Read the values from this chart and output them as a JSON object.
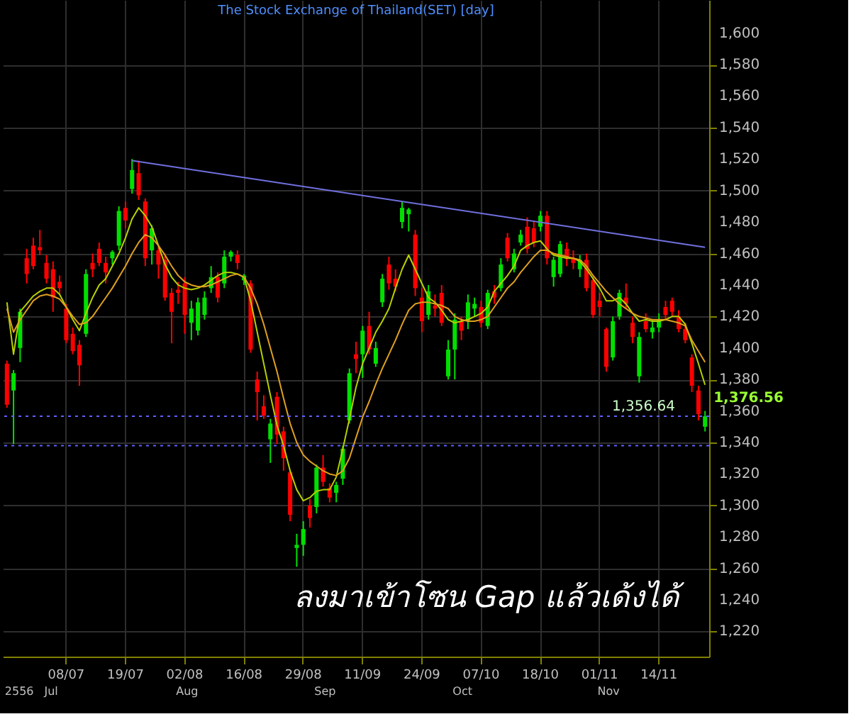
{
  "chart_data": {
    "type": "candlestick",
    "title": "The Stock Exchange of Thailand(SET) [day]",
    "categories": [
      null,
      null,
      null,
      null,
      null,
      null,
      null,
      null,
      null,
      "08/07",
      null,
      null,
      null,
      null,
      null,
      null,
      null,
      null,
      "19/07",
      null,
      null,
      null,
      null,
      null,
      null,
      null,
      null,
      "02/08",
      null,
      null,
      null,
      null,
      null,
      null,
      null,
      null,
      "16/08",
      null,
      null,
      null,
      null,
      null,
      null,
      null,
      null,
      "29/08",
      null,
      null,
      null,
      null,
      null,
      null,
      null,
      null,
      "11/09",
      null,
      null,
      null,
      null,
      null,
      null,
      null,
      null,
      "24/09",
      null,
      null,
      null,
      null,
      null,
      null,
      null,
      null,
      "07/10",
      null,
      null,
      null,
      null,
      null,
      null,
      null,
      null,
      "18/10",
      null,
      null,
      null,
      null,
      null,
      null,
      null,
      null,
      "01/11",
      null,
      null,
      null,
      null,
      null,
      null,
      null,
      null,
      "14/11",
      null,
      null,
      null,
      null,
      null,
      null,
      null
    ],
    "ohlc": [
      [
        1390,
        1392,
        1362,
        1364
      ],
      [
        1373,
        1386,
        1339,
        1384
      ],
      [
        1400,
        1425,
        1391,
        1423
      ],
      [
        1457,
        1463,
        1441,
        1447
      ],
      [
        1465,
        1470,
        1450,
        1452
      ],
      [
        1464,
        1475,
        1459,
        1462
      ],
      [
        1454,
        1459,
        1441,
        1444
      ],
      [
        1450,
        1455,
        1423,
        1432
      ],
      [
        1442,
        1446,
        1434,
        1438
      ],
      [
        1425,
        1428,
        1403,
        1405
      ],
      [
        1409,
        1413,
        1396,
        1398
      ],
      [
        1402,
        1405,
        1376,
        1389
      ],
      [
        1409,
        1450,
        1407,
        1447
      ],
      [
        1454,
        1460,
        1445,
        1450
      ],
      [
        1463,
        1467,
        1452,
        1454
      ],
      [
        1454,
        1458,
        1441,
        1448
      ],
      [
        1457,
        1462,
        1453,
        1461
      ],
      [
        1465,
        1490,
        1462,
        1487
      ],
      [
        1489,
        1493,
        1476,
        1481
      ],
      [
        1501,
        1520,
        1498,
        1513
      ],
      [
        1511,
        1519,
        1494,
        1497
      ],
      [
        1493,
        1495,
        1452,
        1457
      ],
      [
        1462,
        1478,
        1453,
        1476
      ],
      [
        1462,
        1465,
        1444,
        1453
      ],
      [
        1456,
        1460,
        1430,
        1432
      ],
      [
        1435,
        1438,
        1403,
        1423
      ],
      [
        1437,
        1442,
        1428,
        1435
      ],
      [
        1441,
        1445,
        1409,
        1421
      ],
      [
        1416,
        1430,
        1405,
        1425
      ],
      [
        1411,
        1432,
        1408,
        1429
      ],
      [
        1421,
        1436,
        1418,
        1432
      ],
      [
        1438,
        1452,
        1435,
        1445
      ],
      [
        1445,
        1448,
        1429,
        1432
      ],
      [
        1441,
        1462,
        1438,
        1458
      ],
      [
        1458,
        1462,
        1455,
        1461
      ],
      [
        1459,
        1462,
        1450,
        1454
      ],
      [
        1443,
        1447,
        1440,
        1446
      ],
      [
        1441,
        1443,
        1397,
        1399
      ],
      [
        1380,
        1385,
        1354,
        1372
      ],
      [
        1363,
        1370,
        1355,
        1357
      ],
      [
        1342,
        1355,
        1327,
        1352
      ],
      [
        1369,
        1372,
        1339,
        1345
      ],
      [
        1347,
        1350,
        1322,
        1330
      ],
      [
        1321,
        1323,
        1290,
        1294
      ],
      [
        1273,
        1282,
        1261,
        1275
      ],
      [
        1275,
        1290,
        1268,
        1285
      ],
      [
        1300,
        1304,
        1286,
        1292
      ],
      [
        1299,
        1326,
        1295,
        1324
      ],
      [
        1324,
        1332,
        1312,
        1315
      ],
      [
        1311,
        1314,
        1302,
        1305
      ],
      [
        1308,
        1315,
        1302,
        1313
      ],
      [
        1317,
        1338,
        1313,
        1336
      ],
      [
        1354,
        1387,
        1352,
        1384
      ],
      [
        1396,
        1404,
        1384,
        1393
      ],
      [
        1396,
        1414,
        1381,
        1411
      ],
      [
        1414,
        1423,
        1396,
        1399
      ],
      [
        1390,
        1404,
        1388,
        1400
      ],
      [
        1429,
        1447,
        1426,
        1444
      ],
      [
        1453,
        1458,
        1437,
        1441
      ],
      [
        1444,
        1450,
        1436,
        1439
      ],
      [
        1480,
        1493,
        1476,
        1489
      ],
      [
        1485,
        1489,
        1474,
        1488
      ],
      [
        1472,
        1475,
        1433,
        1438
      ],
      [
        1432,
        1438,
        1410,
        1417
      ],
      [
        1421,
        1440,
        1418,
        1436
      ],
      [
        1427,
        1434,
        1420,
        1425
      ],
      [
        1435,
        1440,
        1414,
        1416
      ],
      [
        1382,
        1405,
        1380,
        1399
      ],
      [
        1399,
        1422,
        1380,
        1418
      ],
      [
        1417,
        1420,
        1405,
        1411
      ],
      [
        1417,
        1434,
        1412,
        1429
      ],
      [
        1425,
        1432,
        1420,
        1428
      ],
      [
        1426,
        1430,
        1413,
        1416
      ],
      [
        1414,
        1437,
        1412,
        1435
      ],
      [
        1436,
        1440,
        1428,
        1432
      ],
      [
        1438,
        1457,
        1436,
        1453
      ],
      [
        1470,
        1473,
        1455,
        1457
      ],
      [
        1450,
        1463,
        1448,
        1460
      ],
      [
        1467,
        1475,
        1465,
        1472
      ],
      [
        1477,
        1483,
        1460,
        1463
      ],
      [
        1476,
        1480,
        1464,
        1467
      ],
      [
        1477,
        1487,
        1474,
        1484
      ],
      [
        1484,
        1487,
        1453,
        1457
      ],
      [
        1445,
        1458,
        1439,
        1456
      ],
      [
        1447,
        1468,
        1445,
        1466
      ],
      [
        1463,
        1467,
        1452,
        1457
      ],
      [
        1457,
        1462,
        1450,
        1454
      ],
      [
        1450,
        1459,
        1445,
        1456
      ],
      [
        1456,
        1460,
        1436,
        1438
      ],
      [
        1443,
        1445,
        1419,
        1421
      ],
      [
        1430,
        1435,
        1420,
        1426
      ],
      [
        1412,
        1413,
        1385,
        1388
      ],
      [
        1394,
        1420,
        1392,
        1417
      ],
      [
        1420,
        1437,
        1418,
        1435
      ],
      [
        1432,
        1441,
        1425,
        1428
      ],
      [
        1416,
        1420,
        1403,
        1407
      ],
      [
        1382,
        1410,
        1378,
        1407
      ],
      [
        1417,
        1422,
        1410,
        1412
      ],
      [
        1410,
        1418,
        1406,
        1413
      ],
      [
        1413,
        1422,
        1410,
        1418
      ],
      [
        1426,
        1430,
        1418,
        1421
      ],
      [
        1430,
        1432,
        1420,
        1423
      ],
      [
        1420,
        1424,
        1410,
        1412
      ],
      [
        1412,
        1416,
        1403,
        1405
      ],
      [
        1394,
        1396,
        1372,
        1376
      ],
      [
        1373,
        1376,
        1354,
        1358
      ],
      [
        1350,
        1360,
        1347,
        1356.64
      ]
    ],
    "colors": [
      "#ff0000",
      "#00e000",
      "#00e000",
      "#ff0000",
      "#ff0000",
      "#ff0000",
      "#ff0000",
      "#ff0000",
      "#ff0000",
      "#ff0000",
      "#ff0000",
      "#ff0000",
      "#00e000",
      "#ff0000",
      "#ff0000",
      "#ff0000",
      "#00e000",
      "#00e000",
      "#ff0000",
      "#00e000",
      "#ff0000",
      "#ff0000",
      "#00e000",
      "#ff0000",
      "#ff0000",
      "#ff0000",
      "#ff0000",
      "#ff0000",
      "#00e000",
      "#00e000",
      "#00e000",
      "#00e000",
      "#ff0000",
      "#00e000",
      "#00e000",
      "#ff0000",
      "#00e000",
      "#ff0000",
      "#ff0000",
      "#ff0000",
      "#00e000",
      "#ff0000",
      "#ff0000",
      "#ff0000",
      "#00e000",
      "#00e000",
      "#ff0000",
      "#00e000",
      "#ff0000",
      "#ff0000",
      "#00e000",
      "#00e000",
      "#00e000",
      "#ff0000",
      "#00e000",
      "#ff0000",
      "#00e000",
      "#00e000",
      "#ff0000",
      "#ff0000",
      "#00e000",
      "#00e000",
      "#ff0000",
      "#ff0000",
      "#00e000",
      "#ff0000",
      "#ff0000",
      "#00e000",
      "#00e000",
      "#ff0000",
      "#00e000",
      "#00e000",
      "#ff0000",
      "#00e000",
      "#ff0000",
      "#00e000",
      "#ff0000",
      "#00e000",
      "#00e000",
      "#ff0000",
      "#ff0000",
      "#00e000",
      "#ff0000",
      "#00e000",
      "#00e000",
      "#ff0000",
      "#ff0000",
      "#00e000",
      "#ff0000",
      "#ff0000",
      "#ff0000",
      "#ff0000",
      "#00e000",
      "#00e000",
      "#ff0000",
      "#ff0000",
      "#00e000",
      "#ff0000",
      "#00e000",
      "#00e000",
      "#ff0000",
      "#ff0000",
      "#ff0000",
      "#ff0000",
      "#ff0000",
      "#ff0000",
      "#00e000"
    ],
    "series": [
      {
        "type": "line",
        "color": "#b8d000",
        "value_labels": [
          null,
          null,
          null,
          null,
          null,
          null,
          null,
          null,
          null,
          null,
          null,
          null,
          null,
          null,
          null,
          null,
          null,
          null,
          null,
          null,
          null,
          null,
          null,
          null,
          null,
          null,
          null,
          null,
          null,
          null,
          null,
          null,
          null,
          null,
          null,
          null,
          null,
          null,
          null,
          null,
          null,
          null,
          null,
          null,
          null,
          null,
          null,
          null,
          null,
          null,
          null,
          null,
          null,
          null,
          null,
          null,
          null,
          null,
          null,
          null,
          null,
          null,
          null,
          null,
          null,
          null,
          null,
          null,
          null,
          null,
          null,
          null,
          null,
          null,
          null,
          null,
          null,
          null,
          null,
          null,
          null,
          null,
          null,
          null,
          null,
          null,
          null,
          null,
          null,
          null,
          null,
          null,
          null,
          null,
          null,
          null,
          null,
          null,
          null,
          null,
          null,
          null,
          null,
          null,
          null,
          null,
          "1,376.56"
        ],
        "values": [
          1429,
          1396,
          1423,
          1428,
          1433,
          1436,
          1438,
          1438,
          1434,
          1426,
          1418,
          1411,
          1422,
          1432,
          1440,
          1444,
          1452,
          1460,
          1470,
          1482,
          1489,
          1484,
          1477,
          1465,
          1453,
          1445,
          1440,
          1438,
          1437,
          1438,
          1440,
          1443,
          1446,
          1448,
          1448,
          1447,
          1445,
          1430,
          1410,
          1390,
          1370,
          1351,
          1338,
          1322,
          1310,
          1303,
          1305,
          1309,
          1310,
          1310,
          1318,
          1336,
          1355,
          1375,
          1390,
          1400,
          1410,
          1417,
          1425,
          1438,
          1450,
          1459,
          1450,
          1441,
          1432,
          1429,
          1424,
          1418,
          1416,
          1417,
          1418,
          1420,
          1422,
          1426,
          1436,
          1441,
          1446,
          1452,
          1462,
          1465,
          1467,
          1468,
          1463,
          1459,
          1458,
          1457,
          1457,
          1455,
          1450,
          1444,
          1438,
          1430,
          1430,
          1432,
          1428,
          1422,
          1417,
          1418,
          1417,
          1417,
          1418,
          1420,
          1420,
          1415,
          1403,
          1390,
          1376.56
        ]
      },
      {
        "type": "line",
        "color": "#e0a020",
        "values": [
          1425,
          1410,
          1418,
          1424,
          1430,
          1433,
          1434,
          1433,
          1431,
          1426,
          1420,
          1415,
          1416,
          1420,
          1426,
          1432,
          1438,
          1445,
          1452,
          1460,
          1467,
          1472,
          1470,
          1465,
          1459,
          1452,
          1446,
          1442,
          1440,
          1439,
          1439,
          1440,
          1442,
          1444,
          1446,
          1447,
          1445,
          1438,
          1428,
          1415,
          1400,
          1385,
          1368,
          1352,
          1340,
          1332,
          1328,
          1325,
          1322,
          1320,
          1319,
          1322,
          1330,
          1343,
          1356,
          1366,
          1377,
          1387,
          1396,
          1405,
          1415,
          1424,
          1428,
          1429,
          1429,
          1428,
          1427,
          1425,
          1420,
          1418,
          1417,
          1417,
          1418,
          1420,
          1426,
          1432,
          1438,
          1442,
          1448,
          1453,
          1458,
          1462,
          1462,
          1460,
          1459,
          1458,
          1457,
          1456,
          1452,
          1446,
          1441,
          1436,
          1432,
          1428,
          1425,
          1422,
          1420,
          1419,
          1418,
          1418,
          1418,
          1417,
          1416,
          1414,
          1405,
          1398,
          1391
        ]
      },
      {
        "type": "line",
        "color": "#7070e0",
        "values": [
          null,
          null,
          null,
          null,
          null,
          null,
          null,
          null,
          null,
          null,
          null,
          null,
          null,
          null,
          null,
          null,
          null,
          null,
          null,
          1519,
          null,
          null,
          null,
          null,
          null,
          null,
          null,
          null,
          null,
          null,
          null,
          null,
          null,
          null,
          null,
          null,
          null,
          null,
          null,
          null,
          null,
          null,
          null,
          null,
          null,
          null,
          null,
          null,
          null,
          null,
          null,
          null,
          null,
          null,
          null,
          null,
          null,
          null,
          null,
          null,
          null,
          null,
          null,
          null,
          null,
          null,
          null,
          null,
          null,
          null,
          null,
          null,
          null,
          null,
          null,
          null,
          null,
          null,
          null,
          null,
          null,
          null,
          null,
          null,
          null,
          null,
          null,
          null,
          null,
          null,
          null,
          null,
          null,
          null,
          null,
          null,
          null,
          null,
          null,
          null,
          null,
          null,
          null,
          null,
          null,
          null,
          1464
        ]
      }
    ],
    "ylim": [
      1204,
      1621
    ],
    "yticks": [
      {
        "value": 1220,
        "label": "1,220"
      },
      {
        "value": 1240,
        "label": "1,240"
      },
      {
        "value": 1260,
        "label": "1,260"
      },
      {
        "value": 1280,
        "label": "1,280"
      },
      {
        "value": 1300,
        "label": "1,300"
      },
      {
        "value": 1320,
        "label": "1,320"
      },
      {
        "value": 1340,
        "label": "1,340"
      },
      {
        "value": 1360,
        "label": "1,360"
      },
      {
        "value": 1380,
        "label": "1,380"
      },
      {
        "value": 1400,
        "label": "1,400"
      },
      {
        "value": 1420,
        "label": "1,420"
      },
      {
        "value": 1440,
        "label": "1,440"
      },
      {
        "value": 1460,
        "label": "1,460"
      },
      {
        "value": 1480,
        "label": "1,480"
      },
      {
        "value": 1500,
        "label": "1,500"
      },
      {
        "value": 1520,
        "label": "1,520"
      },
      {
        "value": 1540,
        "label": "1,540"
      },
      {
        "value": 1560,
        "label": "1,560"
      },
      {
        "value": 1580,
        "label": "1,580"
      },
      {
        "value": 1600,
        "label": "1,600"
      }
    ],
    "grid": true,
    "ref_lines": [
      {
        "axis": "y",
        "value": 1356.64,
        "label": "1,356.64",
        "color": "#6060ff",
        "line_style": "dotted"
      },
      {
        "axis": "y",
        "value": 1338,
        "color": "#6060ff",
        "line_style": "dotted"
      }
    ],
    "annotations": [
      "ลงมาเข้าโซน Gap แล้วเด้งได้",
      "2556",
      "Jul",
      "Aug",
      "Sep",
      "Oct",
      "Nov"
    ]
  }
}
